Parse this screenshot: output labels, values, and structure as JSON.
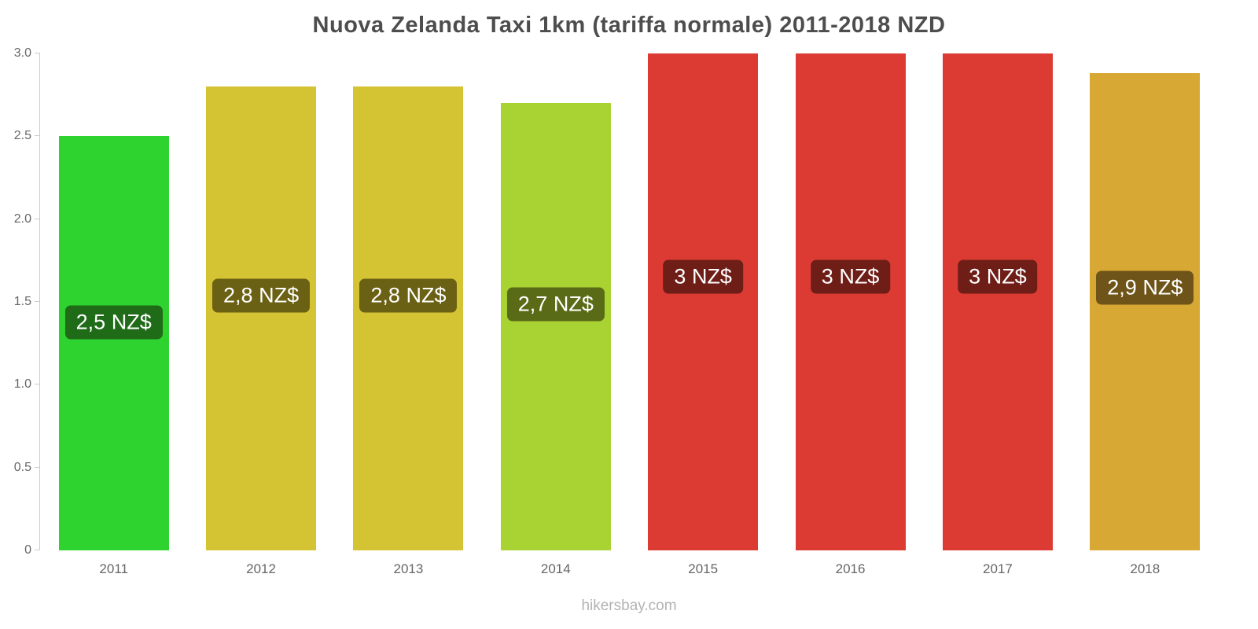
{
  "chart_data": {
    "type": "bar",
    "title": "Nuova Zelanda Taxi 1km (tariffa normale) 2011-2018 NZD",
    "categories": [
      "2011",
      "2012",
      "2013",
      "2014",
      "2015",
      "2016",
      "2017",
      "2018"
    ],
    "values": [
      2.5,
      2.8,
      2.8,
      2.7,
      3.0,
      3.0,
      3.0,
      2.88
    ],
    "value_labels": [
      "2,5 NZ$",
      "2,8 NZ$",
      "2,8 NZ$",
      "2,7 NZ$",
      "3 NZ$",
      "3 NZ$",
      "3 NZ$",
      "2,9 NZ$"
    ],
    "bar_colors": [
      "#2fd32f",
      "#d4c332",
      "#d4c332",
      "#a8d332",
      "#dc3b33",
      "#dc3b33",
      "#dc3b33",
      "#d8a834"
    ],
    "badge_colors": [
      "#1f6b17",
      "#6b6114",
      "#6b6114",
      "#5a6b17",
      "#6e1d17",
      "#6e1d17",
      "#6e1d17",
      "#6e5418"
    ],
    "xlabel": "",
    "ylabel": "",
    "ylim": [
      0,
      3
    ],
    "yticks": [
      0,
      0.5,
      1.0,
      1.5,
      2.0,
      2.5,
      3.0
    ],
    "ytick_labels": [
      "0",
      "0.5",
      "1.0",
      "1.5",
      "2.0",
      "2.5",
      "3.0"
    ],
    "grid": false,
    "legend": false
  },
  "footer": {
    "text": "hikersbay.com"
  }
}
